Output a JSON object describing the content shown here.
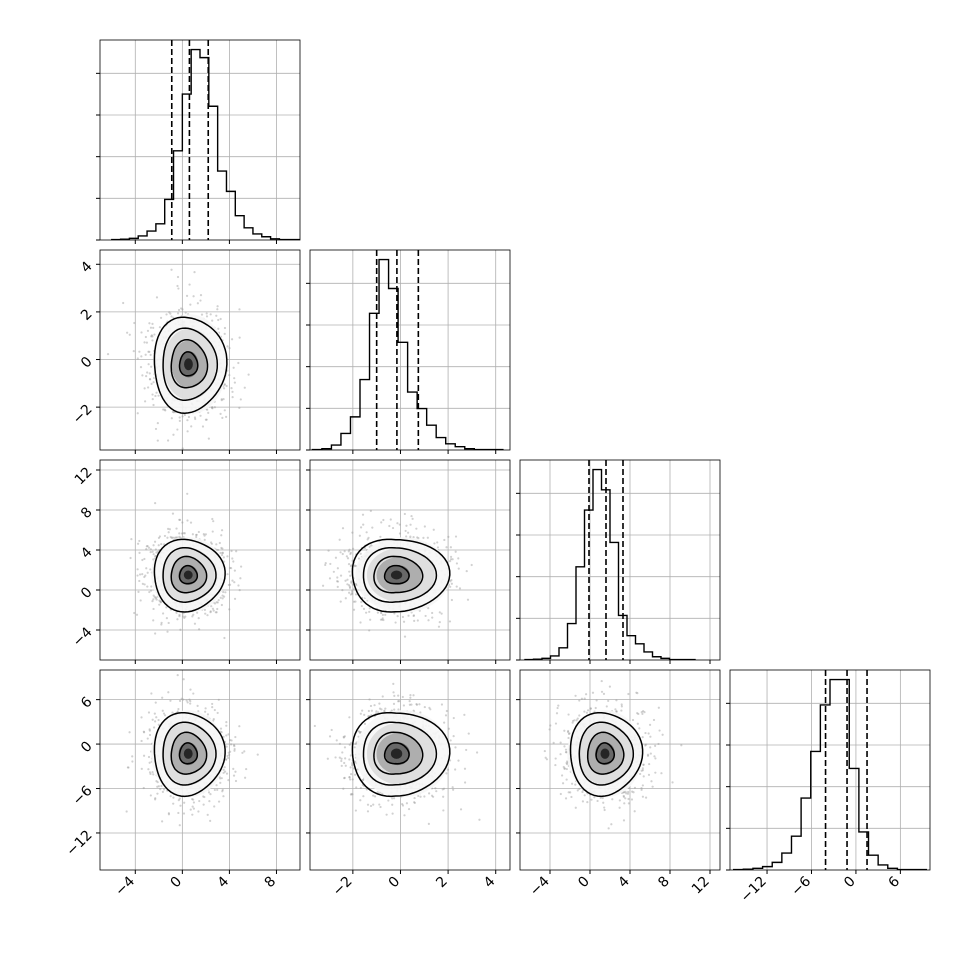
{
  "chart_data": {
    "type": "corner",
    "variables": [
      {
        "index": 0,
        "range": [
          -7,
          10
        ],
        "ticks": [
          -4,
          0,
          4,
          8
        ],
        "quantiles": [
          -0.9,
          0.6,
          2.2
        ],
        "hist": {
          "start": -6.0,
          "bin_width": 0.75,
          "counts": [
            1,
            2,
            4,
            10,
            22,
            40,
            100,
            220,
            360,
            470,
            450,
            330,
            170,
            120,
            60,
            30,
            15,
            8,
            3,
            1,
            1,
            1
          ]
        },
        "center": 0.5
      },
      {
        "index": 1,
        "range": [
          -3.8,
          4.6
        ],
        "ticks": [
          -2,
          0,
          2,
          4
        ],
        "quantiles": [
          -1.0,
          -0.15,
          0.75
        ],
        "hist": {
          "start": -3.7,
          "bin_width": 0.4,
          "counts": [
            1,
            3,
            12,
            40,
            80,
            170,
            330,
            460,
            390,
            260,
            140,
            100,
            60,
            30,
            15,
            8,
            3,
            1,
            1,
            1
          ]
        },
        "center": -0.2
      },
      {
        "index": 2,
        "range": [
          -7,
          13
        ],
        "ticks": [
          -4,
          0,
          4,
          8,
          12
        ],
        "quantiles": [
          -0.1,
          1.6,
          3.3
        ],
        "hist": {
          "start": -6.5,
          "bin_width": 0.85,
          "counts": [
            1,
            2,
            4,
            10,
            30,
            90,
            230,
            370,
            470,
            420,
            290,
            110,
            60,
            40,
            20,
            8,
            4,
            1,
            1,
            1
          ]
        },
        "center": 1.5
      },
      {
        "index": 3,
        "range": [
          -17,
          10
        ],
        "ticks": [
          -12,
          -6,
          0,
          6
        ],
        "quantiles": [
          -4.1,
          -1.2,
          1.5
        ],
        "hist": {
          "start": -16.5,
          "bin_width": 1.3,
          "counts": [
            1,
            2,
            4,
            8,
            18,
            40,
            80,
            170,
            280,
            390,
            450,
            450,
            240,
            90,
            35,
            12,
            4,
            1,
            1,
            1
          ]
        },
        "center": -1.3
      }
    ],
    "pairs": [
      {
        "row": 1,
        "col": 0,
        "sd_x": 1.5,
        "sd_y": 1.0,
        "contour_skew": [
          0.05,
          0.0
        ]
      },
      {
        "row": 2,
        "col": 0,
        "sd_x": 1.5,
        "sd_y": 1.8,
        "contour_skew": [
          0.0,
          0.0
        ]
      },
      {
        "row": 2,
        "col": 1,
        "sd_x": 0.95,
        "sd_y": 1.8,
        "contour_skew": [
          0.15,
          0.0
        ]
      },
      {
        "row": 3,
        "col": 0,
        "sd_x": 1.5,
        "sd_y": 2.8,
        "contour_skew": [
          0.0,
          0.0
        ]
      },
      {
        "row": 3,
        "col": 1,
        "sd_x": 0.95,
        "sd_y": 2.8,
        "contour_skew": [
          0.15,
          0.0
        ]
      },
      {
        "row": 3,
        "col": 2,
        "sd_x": 1.8,
        "sd_y": 2.8,
        "contour_skew": [
          0.0,
          0.0
        ]
      }
    ],
    "contour_levels_sigma": [
      0.5,
      1.0,
      1.5,
      2.0
    ],
    "grid": true,
    "colors": {
      "line": "#000000",
      "grid": "#b0b0b0",
      "scatter": "#9a9a9a",
      "density_low": "#f4f4f4",
      "density_high": "#111111"
    }
  }
}
